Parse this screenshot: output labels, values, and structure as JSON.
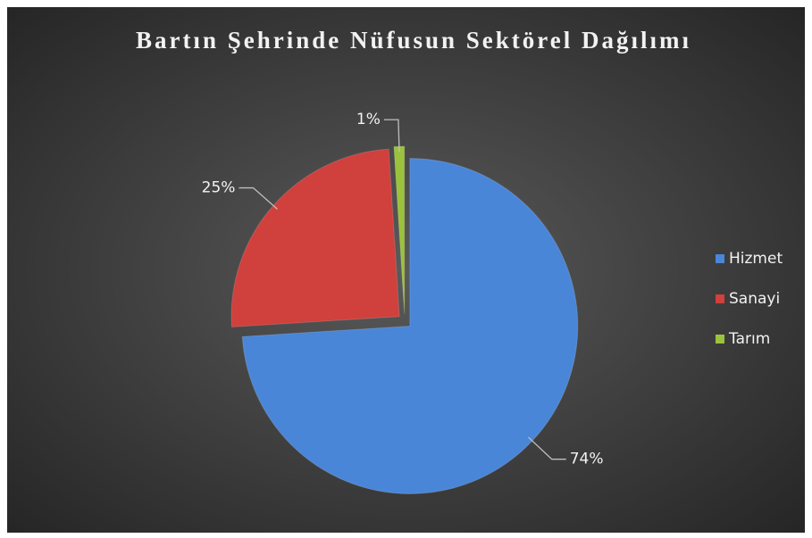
{
  "chart_data": {
    "type": "pie",
    "title": "Bartın Şehrinde Nüfusun Sektörel Dağılımı",
    "categories": [
      "Hizmet",
      "Sanayi",
      "Tarım"
    ],
    "values": [
      74,
      25,
      1
    ],
    "value_labels": [
      "74%",
      "25%",
      "1%"
    ],
    "colors": [
      "#4a86d8",
      "#d0403c",
      "#9bc23c"
    ],
    "legend": "right"
  }
}
